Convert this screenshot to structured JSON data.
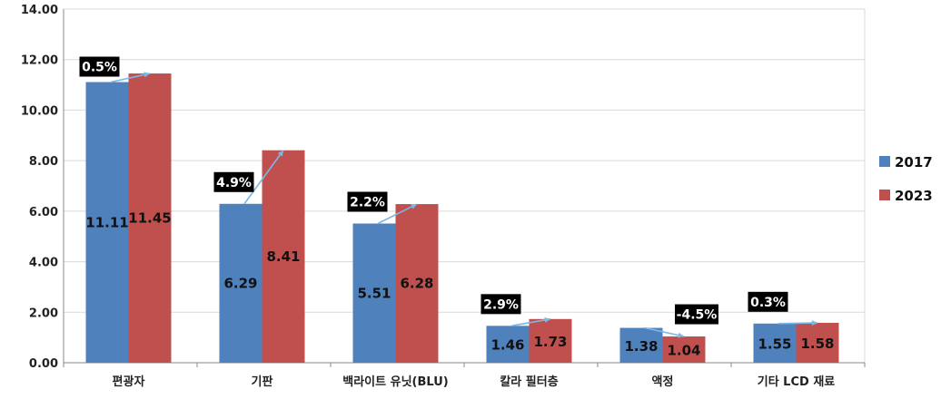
{
  "chart_data": {
    "type": "bar",
    "categories": [
      "편광자",
      "기판",
      "백라이트 유닛(BLU)",
      "칼라 필터층",
      "액정",
      "기타 LCD 재료"
    ],
    "series": [
      {
        "name": "2017",
        "color": "#4F81BD",
        "values": [
          11.11,
          6.29,
          5.51,
          1.46,
          1.38,
          1.55
        ]
      },
      {
        "name": "2023",
        "color": "#C0504D",
        "values": [
          11.45,
          8.41,
          6.28,
          1.73,
          1.04,
          1.58
        ]
      }
    ],
    "value_labels": {
      "2017": [
        "11.11",
        "6.29",
        "5.51",
        "1.46",
        "1.38",
        "1.55"
      ],
      "2023": [
        "11.45",
        "8.41",
        "6.28",
        "1.73",
        "1.04",
        "1.58"
      ]
    },
    "growth_labels": [
      "0.5%",
      "4.9%",
      "2.2%",
      "2.9%",
      "-4.5%",
      "0.3%"
    ],
    "y_ticks": [
      "0.00",
      "2.00",
      "4.00",
      "6.00",
      "8.00",
      "10.00",
      "12.00",
      "14.00"
    ],
    "ylim": [
      0,
      14
    ],
    "grid": true,
    "legend_position": "right",
    "title": "",
    "xlabel": "",
    "ylabel": ""
  }
}
